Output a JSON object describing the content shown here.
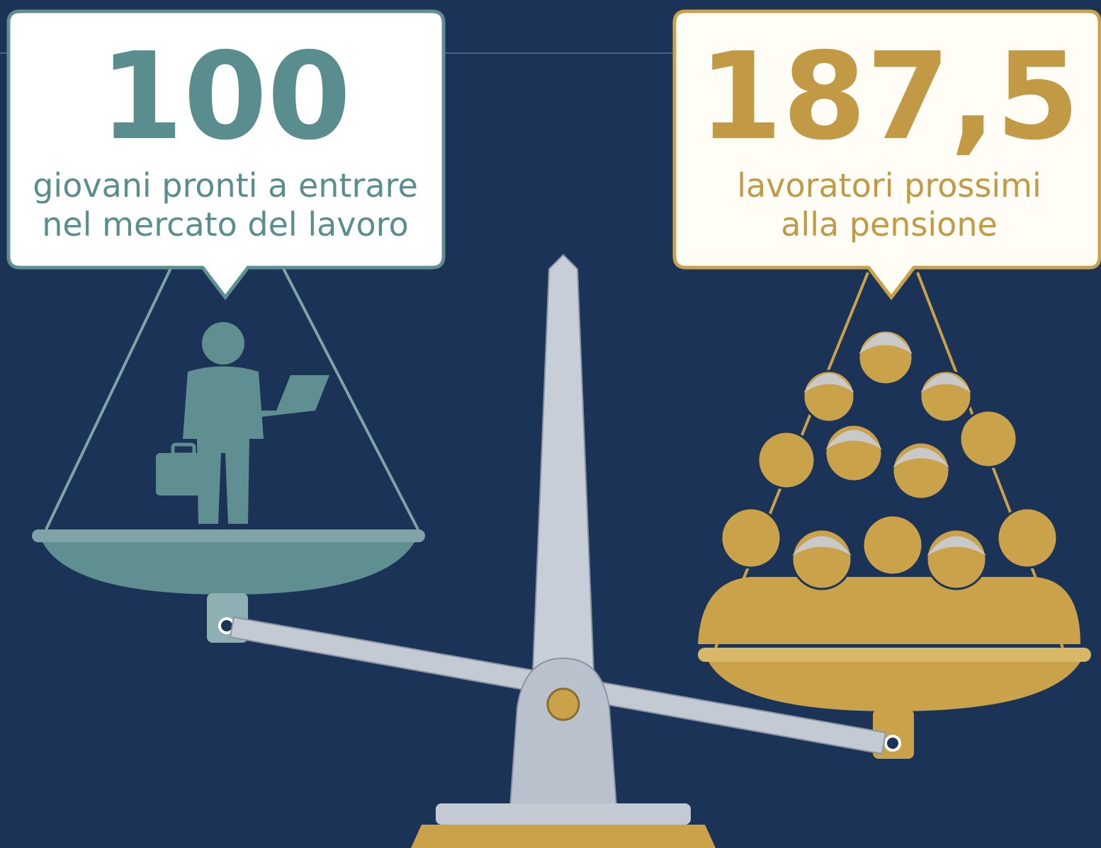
{
  "left": {
    "number": "100",
    "caption": [
      "giovani pronti a entrare",
      "nel mercato del lavoro"
    ]
  },
  "right": {
    "number": "187,5",
    "caption": [
      "lavoratori prossimi",
      "alla pensione"
    ]
  }
}
